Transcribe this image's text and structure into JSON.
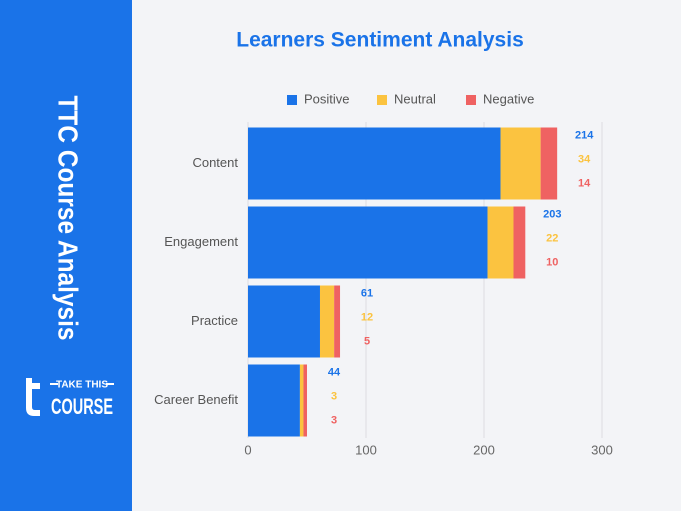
{
  "sidebar": {
    "title": "TTC Course Analysis",
    "logo_top": "TAKE THIS",
    "logo_main": "COURSE"
  },
  "chart_data": {
    "type": "hbar-stacked",
    "title": "Learners Sentiment Analysis",
    "categories": [
      "Content",
      "Engagement",
      "Practice",
      "Career Benefit"
    ],
    "series": [
      {
        "name": "Positive",
        "color": "#1a73e8",
        "values": [
          214,
          203,
          61,
          44
        ]
      },
      {
        "name": "Neutral",
        "color": "#fbc340",
        "values": [
          34,
          22,
          12,
          3
        ]
      },
      {
        "name": "Negative",
        "color": "#ef6262",
        "values": [
          14,
          10,
          5,
          3
        ]
      }
    ],
    "xlim": [
      0,
      300
    ],
    "xticks": [
      0,
      100,
      200,
      300
    ],
    "grid": true,
    "legend": "top"
  }
}
